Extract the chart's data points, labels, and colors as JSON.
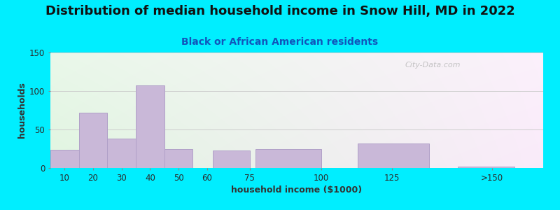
{
  "title": "Distribution of median household income in Snow Hill, MD in 2022",
  "subtitle": "Black or African American residents",
  "xlabel": "household income ($1000)",
  "ylabel": "households",
  "background_outer": "#00EEFF",
  "bar_color": "#C9B8D8",
  "bar_edge_color": "#B0A0C8",
  "categories": [
    "10",
    "20",
    "30",
    "40",
    "50",
    "60",
    "75",
    "100",
    "125",
    ">150"
  ],
  "values": [
    24,
    72,
    38,
    107,
    25,
    0,
    23,
    25,
    32,
    2
  ],
  "ylim": [
    0,
    150
  ],
  "yticks": [
    0,
    50,
    100,
    150
  ],
  "title_fontsize": 13,
  "subtitle_fontsize": 10,
  "axis_label_fontsize": 9,
  "watermark": "City-Data.com"
}
